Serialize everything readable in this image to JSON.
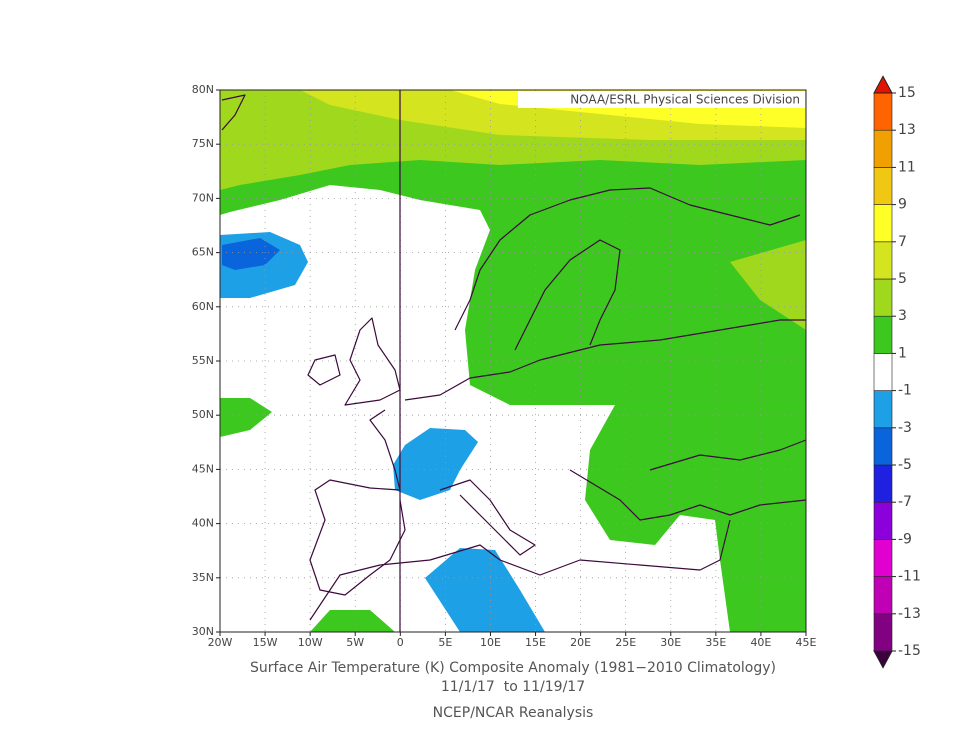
{
  "map": {
    "credit": "NOAA/ESRL Physical Sciences Division",
    "title": "Surface Air Temperature (K) Composite Anomaly (1981−2010 Climatology)",
    "dates": "11/1/17  to 11/19/17",
    "source": "NCEP/NCAR Reanalysis",
    "xlim": [
      -20,
      45
    ],
    "ylim": [
      30,
      80
    ],
    "xticks": [
      {
        "value": -20,
        "label": "20W"
      },
      {
        "value": -15,
        "label": "15W"
      },
      {
        "value": -10,
        "label": "10W"
      },
      {
        "value": -5,
        "label": "5W"
      },
      0,
      {
        "value": 5,
        "label": "5E"
      },
      {
        "value": 10,
        "label": "10E"
      },
      {
        "value": 15,
        "label": "15E"
      },
      {
        "value": 20,
        "label": "20E"
      },
      {
        "value": 25,
        "label": "25E"
      },
      {
        "value": 30,
        "label": "30E"
      },
      {
        "value": 35,
        "label": "35E"
      },
      {
        "value": 40,
        "label": "40E"
      },
      {
        "value": 45,
        "label": "45E"
      }
    ],
    "yticks": [
      {
        "value": 30,
        "label": "30N"
      },
      {
        "value": 35,
        "label": "35N"
      },
      {
        "value": 40,
        "label": "40N"
      },
      {
        "value": 45,
        "label": "45N"
      },
      {
        "value": 50,
        "label": "50N"
      },
      {
        "value": 55,
        "label": "55N"
      },
      {
        "value": 60,
        "label": "60N"
      },
      {
        "value": 65,
        "label": "65N"
      },
      {
        "value": 70,
        "label": "70N"
      },
      {
        "value": 75,
        "label": "75N"
      },
      {
        "value": 80,
        "label": "80N"
      }
    ],
    "grid": true,
    "colorbar": {
      "levels": [
        -15,
        -13,
        -11,
        -9,
        -7,
        -5,
        -3,
        -1,
        1,
        3,
        5,
        7,
        9,
        11,
        13,
        15
      ],
      "colors": [
        "#3c003c",
        "#820082",
        "#c000b4",
        "#e000d0",
        "#8c00dc",
        "#2020e0",
        "#0a64dc",
        "#1ea0e6",
        "#ffffff",
        "#3cc81e",
        "#a0d81e",
        "#d4e41e",
        "#ffff28",
        "#f0c814",
        "#f0a000",
        "#ff6400",
        "#e01400"
      ]
    }
  }
}
